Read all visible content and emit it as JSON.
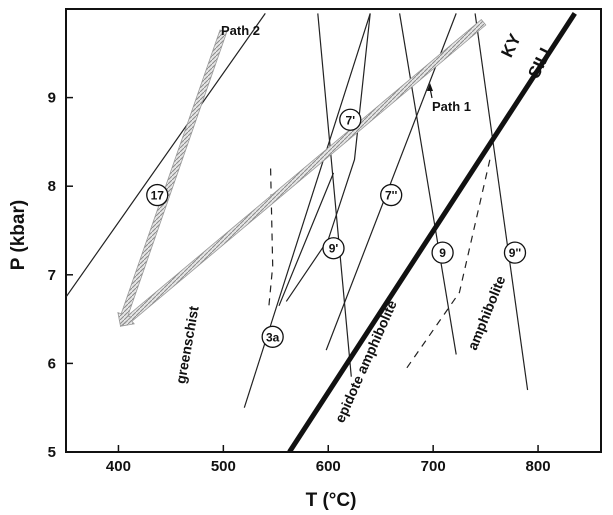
{
  "chart_data": {
    "type": "line",
    "xlabel": "T (°C)",
    "ylabel": "P (kbar)",
    "xlim": [
      350,
      860
    ],
    "ylim": [
      5,
      10
    ],
    "xticks": [
      400,
      500,
      600,
      700,
      800
    ],
    "yticks": [
      5,
      6,
      7,
      8,
      9
    ],
    "grid": false,
    "reactions": [
      {
        "label": "17",
        "points": [
          [
            350,
            6.75
          ],
          [
            540,
            9.95
          ]
        ],
        "label_at": [
          437,
          7.9
        ],
        "style": "solid"
      },
      {
        "label": "3a",
        "points": [
          [
            520,
            5.5
          ],
          [
            640,
            9.95
          ]
        ],
        "label_at": [
          547,
          6.3
        ],
        "style": "solid"
      },
      {
        "label": "7'",
        "points": [
          [
            598,
            6.15
          ],
          [
            722,
            9.95
          ]
        ],
        "label_at": [
          621,
          8.75
        ],
        "style": "solid"
      },
      {
        "label": "7''",
        "points": [
          [
            640,
            9.95
          ],
          [
            625,
            8.3
          ],
          [
            600,
            7.4
          ],
          [
            560,
            6.7
          ]
        ],
        "label_at": [
          660,
          7.9
        ],
        "style": "solid"
      },
      {
        "label": "9'",
        "points": [
          [
            590,
            9.95
          ],
          [
            622,
            5.85
          ]
        ],
        "label_at": [
          605,
          7.3
        ],
        "style": "solid"
      },
      {
        "label": "9",
        "points": [
          [
            668,
            9.95
          ],
          [
            722,
            6.1
          ]
        ],
        "label_at": [
          709,
          7.25
        ],
        "style": "solid"
      },
      {
        "label": "9''",
        "points": [
          [
            740,
            9.95
          ],
          [
            790,
            5.7
          ]
        ],
        "label_at": [
          778,
          7.25
        ],
        "style": "solid"
      },
      {
        "label": "",
        "points": [
          [
            545,
            8.2
          ],
          [
            547,
            7.1
          ],
          [
            543,
            6.6
          ]
        ],
        "style": "dashed"
      },
      {
        "label": "",
        "points": [
          [
            675,
            5.95
          ],
          [
            725,
            6.8
          ],
          [
            755,
            8.35
          ]
        ],
        "style": "dashed"
      },
      {
        "label": "",
        "points": [
          [
            553,
            6.65
          ],
          [
            605,
            8.15
          ]
        ],
        "style": "solid"
      }
    ],
    "ky_sill_line": {
      "points": [
        [
          563,
          5.0
        ],
        [
          835,
          9.95
        ]
      ],
      "label_top": "KY",
      "label_bottom": "SILL"
    },
    "paths": [
      {
        "name": "Path 1",
        "points": [
          [
            748,
            9.85
          ],
          [
            402,
            6.42
          ]
        ],
        "label": "Path 1"
      },
      {
        "name": "Path 2",
        "points": [
          [
            500,
            9.75
          ],
          [
            402,
            6.42
          ]
        ],
        "label": "Path 2"
      }
    ],
    "field_labels": [
      {
        "text": "greenschist",
        "at": [
          470,
          6.2
        ],
        "angle": -80
      },
      {
        "text": "epidote amphibolite",
        "at": [
          640,
          6.0
        ],
        "angle": -66
      },
      {
        "text": "amphibolite",
        "at": [
          755,
          6.55
        ],
        "angle": -68
      }
    ]
  }
}
